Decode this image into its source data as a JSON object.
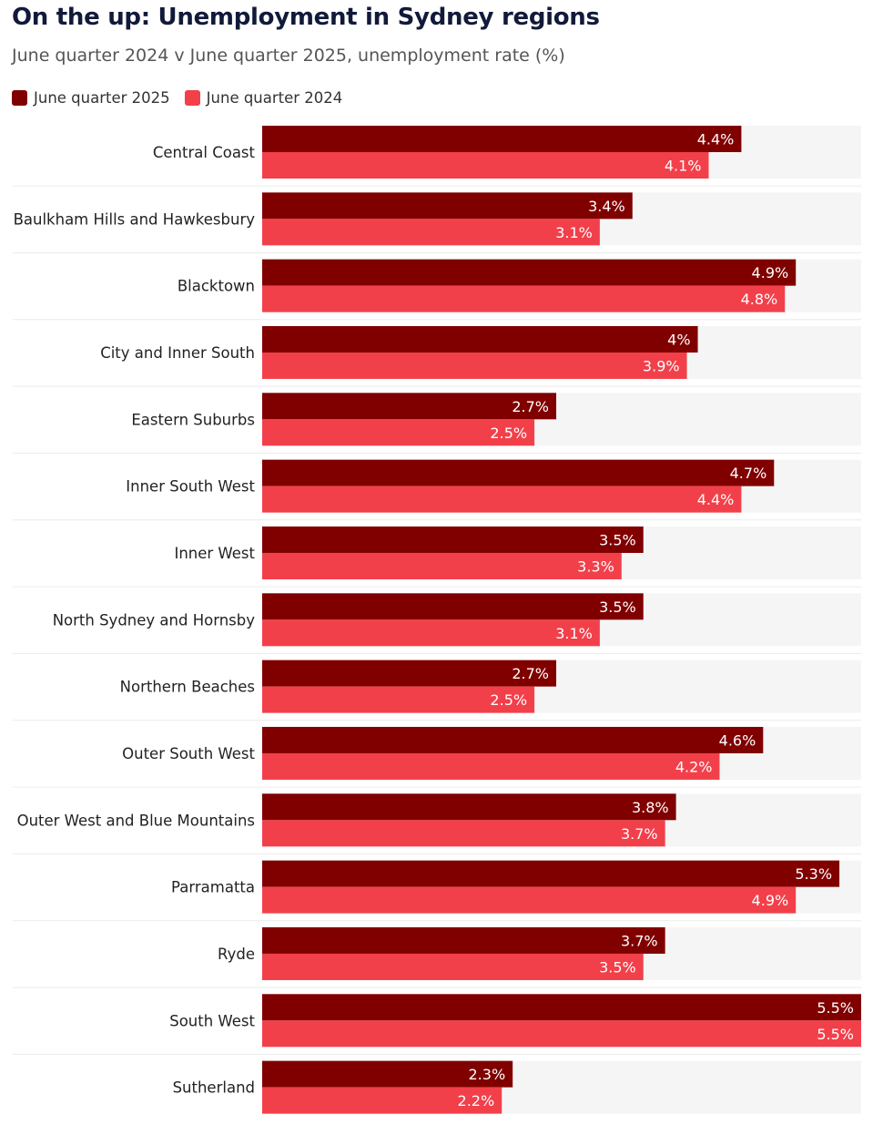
{
  "chart_data": {
    "type": "bar",
    "orientation": "horizontal",
    "title": "On the up: Unemployment in Sydney regions",
    "subtitle": "June quarter 2024 v June quarter 2025, unemployment rate (%)",
    "categories": [
      "Central Coast",
      "Baulkham Hills and Hawkesbury",
      "Blacktown",
      "City and Inner South",
      "Eastern Suburbs",
      "Inner South West",
      "Inner West",
      "North Sydney and Hornsby",
      "Northern Beaches",
      "Outer South West",
      "Outer West and Blue Mountains",
      "Parramatta",
      "Ryde",
      "South West",
      "Sutherland"
    ],
    "series": [
      {
        "name": "June quarter 2025",
        "color": "#800000",
        "values": [
          4.4,
          3.4,
          4.9,
          4,
          2.7,
          4.7,
          3.5,
          3.5,
          2.7,
          4.6,
          3.8,
          5.3,
          3.7,
          5.5,
          2.3
        ],
        "labels": [
          "4.4%",
          "3.4%",
          "4.9%",
          "4%",
          "2.7%",
          "4.7%",
          "3.5%",
          "3.5%",
          "2.7%",
          "4.6%",
          "3.8%",
          "5.3%",
          "3.7%",
          "5.5%",
          "2.3%"
        ]
      },
      {
        "name": "June quarter 2024",
        "color": "#f2404a",
        "values": [
          4.1,
          3.1,
          4.8,
          3.9,
          2.5,
          4.4,
          3.3,
          3.1,
          2.5,
          4.2,
          3.7,
          4.9,
          3.5,
          5.5,
          2.2
        ],
        "labels": [
          "4.1%",
          "3.1%",
          "4.8%",
          "3.9%",
          "2.5%",
          "4.4%",
          "3.3%",
          "3.1%",
          "2.5%",
          "4.2%",
          "3.7%",
          "4.9%",
          "3.5%",
          "5.5%",
          "2.2%"
        ]
      }
    ],
    "xlim": [
      0,
      5.5
    ],
    "track_color": "#f5f5f5",
    "grid": false,
    "legend_position": "top-left"
  }
}
